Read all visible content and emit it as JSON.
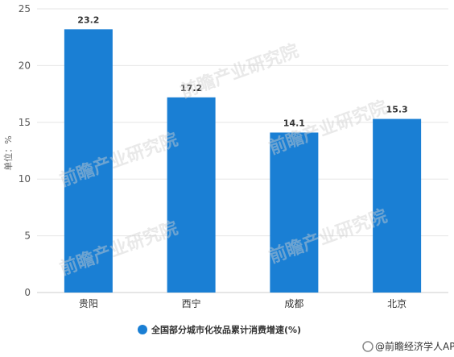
{
  "chart_data": {
    "type": "bar",
    "categories": [
      "贵阳",
      "西宁",
      "成都",
      "北京"
    ],
    "series": [
      {
        "name": "全国部分城市化妆品累计消费增速(%)",
        "values": [
          23.2,
          17.2,
          14.1,
          15.3
        ]
      }
    ],
    "data_labels": [
      "23.2",
      "17.2",
      "14.1",
      "15.3"
    ],
    "ylabel": "单位：%",
    "ylim": [
      0,
      25
    ],
    "yticks": [
      0,
      5,
      10,
      15,
      20,
      25
    ],
    "grid": true,
    "legend_position": "bottom",
    "bar_color": "#1a7fd4"
  },
  "watermark": {
    "text": "前瞻产业研究院"
  },
  "brand": {
    "text": "@前瞻经济学人APP"
  }
}
